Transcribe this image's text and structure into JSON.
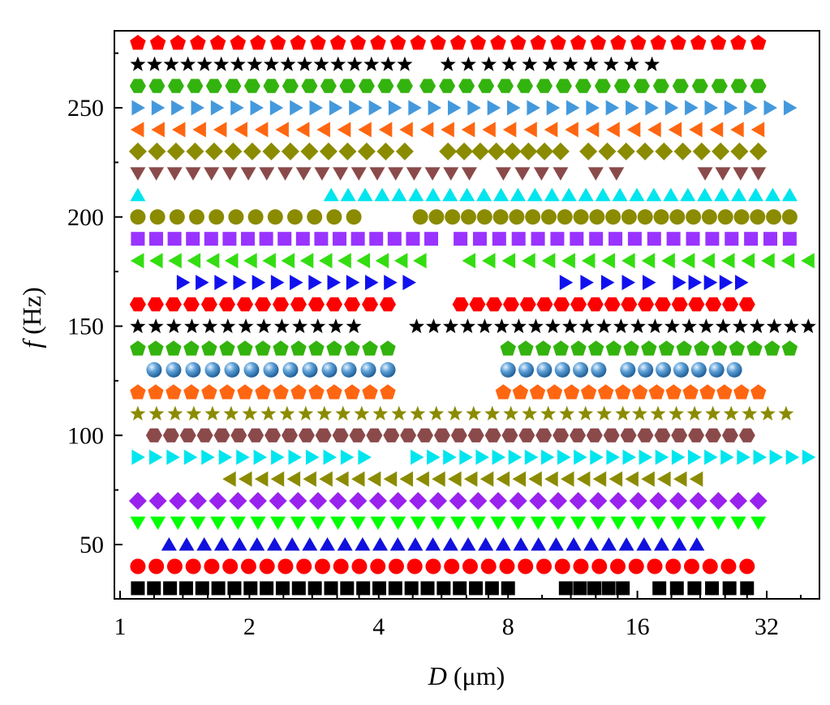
{
  "chart_data": {
    "type": "scatter",
    "x_scale": "log2",
    "xlim": [
      1,
      40
    ],
    "ylim": [
      25,
      285
    ],
    "grid": false,
    "legend": "none",
    "xlabel": {
      "italic": "D",
      "rest": " (μm)"
    },
    "ylabel": {
      "italic": "f",
      "rest": " (Hz)"
    },
    "x_ticks": [
      1,
      2,
      4,
      8,
      16,
      32
    ],
    "x_tick_labels": [
      "1",
      "2",
      "4",
      "8",
      "16",
      "32"
    ],
    "y_ticks": [
      50,
      100,
      150,
      200,
      250
    ],
    "y_tick_labels": [
      "50",
      "100",
      "150",
      "200",
      "250"
    ],
    "series": [
      {
        "f": 280,
        "marker": "pentagon",
        "color": "#ff0000",
        "ranges": [
          [
            1.1,
            30.6,
            32
          ]
        ]
      },
      {
        "f": 270,
        "marker": "star",
        "color": "#000000",
        "ranges": [
          [
            1.1,
            4.6,
            17
          ],
          [
            5.8,
            17.3,
            11
          ]
        ]
      },
      {
        "f": 260,
        "marker": "hexagon",
        "color": "#33b30d",
        "ranges": [
          [
            1.1,
            4.6,
            15
          ],
          [
            5.2,
            30.6,
            18
          ]
        ]
      },
      {
        "f": 250,
        "marker": "triangle-right",
        "color": "#4499dd",
        "ranges": [
          [
            1.1,
            36.2,
            34
          ]
        ]
      },
      {
        "f": 240,
        "marker": "triangle-left",
        "color": "#ff6611",
        "ranges": [
          [
            1.1,
            30.6,
            31
          ]
        ]
      },
      {
        "f": 230,
        "marker": "diamond",
        "color": "#8b8b00",
        "ranges": [
          [
            1.1,
            4.6,
            15
          ],
          [
            5.8,
            10.6,
            8
          ],
          [
            12.3,
            30.6,
            10
          ]
        ]
      },
      {
        "f": 220,
        "marker": "triangle-down",
        "color": "#8b4a4a",
        "ranges": [
          [
            1.1,
            6.5,
            19
          ],
          [
            7.8,
            10.6,
            4
          ],
          [
            12.8,
            14.3,
            2
          ],
          [
            23.0,
            30.6,
            4
          ]
        ]
      },
      {
        "f": 210,
        "marker": "triangle-up",
        "color": "#00e5ee",
        "ranges": [
          [
            1.1,
            1.1,
            1
          ],
          [
            3.1,
            36.2,
            28
          ]
        ]
      },
      {
        "f": 200,
        "marker": "circle",
        "color": "#8b8b00",
        "ranges": [
          [
            1.1,
            3.5,
            12
          ],
          [
            5.0,
            36.2,
            24
          ]
        ]
      },
      {
        "f": 190,
        "marker": "square",
        "color": "#9933ff",
        "ranges": [
          [
            1.1,
            5.3,
            17
          ],
          [
            6.2,
            36.2,
            18
          ]
        ]
      },
      {
        "f": 180,
        "marker": "triangle-left",
        "color": "#33dd11",
        "ranges": [
          [
            1.1,
            5.0,
            16
          ],
          [
            6.5,
            40.0,
            18
          ]
        ]
      },
      {
        "f": 170,
        "marker": "triangle-right",
        "color": "#1111ee",
        "ranges": [
          [
            1.4,
            4.7,
            13
          ],
          [
            10.9,
            17.0,
            5
          ],
          [
            20.0,
            27.9,
            5
          ]
        ]
      },
      {
        "f": 160,
        "marker": "hexagon",
        "color": "#ff0000",
        "ranges": [
          [
            1.1,
            4.2,
            15
          ],
          [
            6.2,
            28.8,
            18
          ]
        ]
      },
      {
        "f": 150,
        "marker": "star",
        "color": "#000000",
        "ranges": [
          [
            1.1,
            3.5,
            13
          ],
          [
            4.9,
            40.0,
            24
          ]
        ]
      },
      {
        "f": 140,
        "marker": "pentagon",
        "color": "#33b30d",
        "ranges": [
          [
            1.1,
            4.2,
            15
          ],
          [
            8.0,
            36.2,
            17
          ]
        ]
      },
      {
        "f": 130,
        "marker": "sphere",
        "color": "#4488cc",
        "ranges": [
          [
            1.2,
            4.2,
            13
          ],
          [
            8.0,
            13.0,
            6
          ],
          [
            15.2,
            26.9,
            7
          ]
        ]
      },
      {
        "f": 120,
        "marker": "pentagon",
        "color": "#ff6611",
        "ranges": [
          [
            1.1,
            4.2,
            15
          ],
          [
            7.8,
            14.8,
            8
          ],
          [
            16.2,
            30.6,
            8
          ]
        ]
      },
      {
        "f": 110,
        "marker": "star",
        "color": "#8b8b00",
        "ranges": [
          [
            1.1,
            14.8,
            27
          ],
          [
            16.2,
            35.5,
            9
          ]
        ]
      },
      {
        "f": 100,
        "marker": "hexagon",
        "color": "#8b4a4a",
        "ranges": [
          [
            1.2,
            28.8,
            36
          ]
        ]
      },
      {
        "f": 90,
        "marker": "triangle-right",
        "color": "#00e5ee",
        "ranges": [
          [
            1.1,
            3.7,
            14
          ],
          [
            4.9,
            40.0,
            25
          ]
        ]
      },
      {
        "f": 80,
        "marker": "triangle-left",
        "color": "#8b8b00",
        "ranges": [
          [
            1.8,
            22.0,
            30
          ]
        ]
      },
      {
        "f": 70,
        "marker": "diamond",
        "color": "#9922ee",
        "ranges": [
          [
            1.1,
            30.6,
            32
          ]
        ]
      },
      {
        "f": 60,
        "marker": "triangle-down",
        "color": "#00ff00",
        "ranges": [
          [
            1.1,
            30.6,
            32
          ]
        ]
      },
      {
        "f": 50,
        "marker": "triangle-up",
        "color": "#1111dd",
        "ranges": [
          [
            1.3,
            22.0,
            31
          ]
        ]
      },
      {
        "f": 40,
        "marker": "circle",
        "color": "#ff0000",
        "ranges": [
          [
            1.1,
            28.8,
            34
          ]
        ]
      },
      {
        "f": 30,
        "marker": "square",
        "color": "#000000",
        "ranges": [
          [
            1.1,
            8.0,
            24
          ],
          [
            10.9,
            14.8,
            5
          ],
          [
            18.0,
            28.8,
            6
          ]
        ]
      }
    ]
  }
}
